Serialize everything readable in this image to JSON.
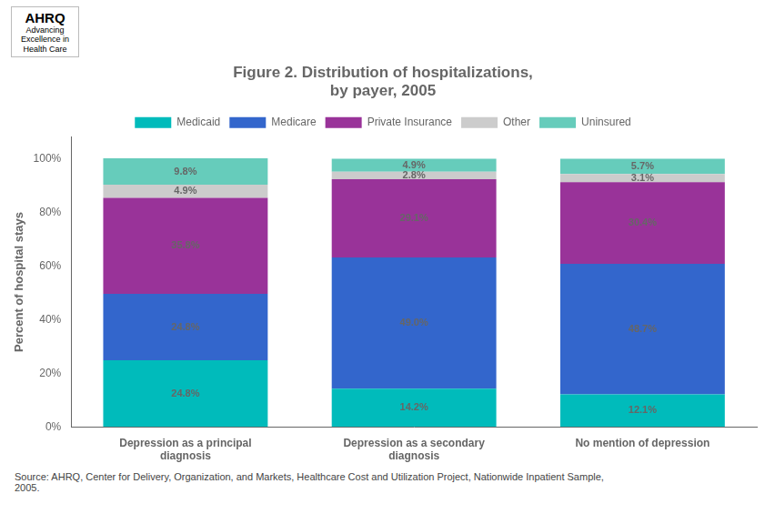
{
  "chart_data": {
    "type": "bar",
    "title": "Figure 2. Distribution of hospitalizations,\nby payer, 2005",
    "categories": [
      "Depression as a principal\ndiagnosis",
      "Depression as a secondary\ndiagnosis",
      "No mention of depression"
    ],
    "series": [
      {
        "name": "Medicaid",
        "color": "#00BBBB",
        "values": [
          24.8,
          14.2,
          12.1
        ],
        "value_labels": [
          "24.8%",
          "14.2%",
          "12.1%"
        ]
      },
      {
        "name": "Medicare",
        "color": "#3366CC",
        "values": [
          24.8,
          49.0,
          48.7
        ],
        "value_labels": [
          "24.8%",
          "49.0%",
          "48.7%"
        ]
      },
      {
        "name": "Private Insurance",
        "color": "#993399",
        "values": [
          35.8,
          29.1,
          30.4
        ],
        "value_labels": [
          "35.8%",
          "29.1%",
          "30.4%"
        ]
      },
      {
        "name": "Other",
        "color": "#CCCCCC",
        "values": [
          4.9,
          2.8,
          3.1
        ],
        "value_labels": [
          "4.9%",
          "2.8%",
          "3.1%"
        ]
      },
      {
        "name": "Uninsured",
        "color": "#66CCBB",
        "values": [
          9.8,
          4.9,
          5.7
        ],
        "value_labels": [
          "9.8%",
          "4.9%",
          "5.7%"
        ]
      }
    ],
    "y_label": "Percent of hospital stays",
    "ylim": [
      0,
      108
    ],
    "yticks": [
      {
        "value": 0,
        "label": "0%"
      },
      {
        "value": 20,
        "label": "20%"
      },
      {
        "value": 40,
        "label": "40%"
      },
      {
        "value": 60,
        "label": "60%"
      },
      {
        "value": 80,
        "label": "80%"
      },
      {
        "value": 100,
        "label": "100%"
      }
    ],
    "stacked": true,
    "data_labels": true,
    "grid": false,
    "legend": "top",
    "annotations": [
      "AHRQ",
      "Advancing\nExcellence in\nHealth Care",
      "Source: AHRQ, Center for Delivery, Organization, and Markets, Healthcare Cost and Utilization Project, Nationwide Inpatient Sample,\n2005."
    ]
  }
}
